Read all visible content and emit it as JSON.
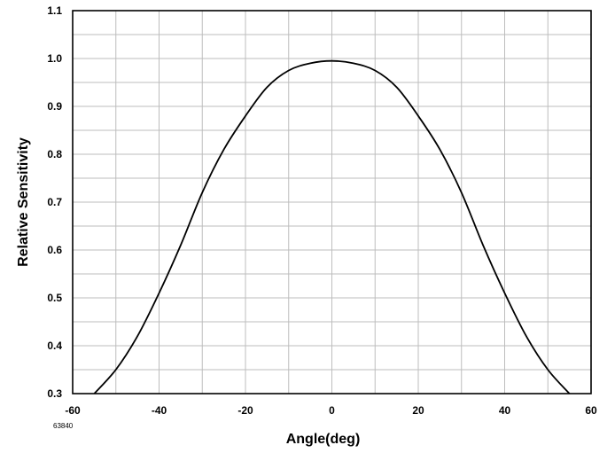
{
  "chart_data": {
    "type": "line",
    "title": "",
    "xlabel": "Angle(deg)",
    "ylabel": "Relative Sensitivity",
    "xlim": [
      -60,
      60
    ],
    "ylim": [
      0.3,
      1.1
    ],
    "x_ticks": [
      -60,
      -40,
      -20,
      0,
      20,
      40,
      60
    ],
    "x_tick_labels": [
      "-60",
      "-40",
      "-20",
      "0",
      "20",
      "40",
      "60"
    ],
    "y_ticks": [
      0.3,
      0.4,
      0.5,
      0.6,
      0.7,
      0.8,
      0.9,
      1.0,
      1.1
    ],
    "y_tick_labels": [
      "0.3",
      "0.4",
      "0.5",
      "0.6",
      "0.7",
      "0.8",
      "0.9",
      "1.0",
      "1.1"
    ],
    "x_minor_step": 10,
    "y_minor_step": 0.05,
    "grid": true,
    "legend": "none",
    "line_color": "#000000",
    "grid_color": "#bdbdbd",
    "series": [
      {
        "x": [
          -55,
          -50,
          -45,
          -40,
          -35,
          -30,
          -25,
          -20,
          -15,
          -10,
          -5,
          0,
          5,
          10,
          15,
          20,
          25,
          30,
          35,
          40,
          45,
          50,
          55
        ],
        "y": [
          0.3,
          0.35,
          0.42,
          0.51,
          0.61,
          0.72,
          0.81,
          0.88,
          0.94,
          0.975,
          0.99,
          0.995,
          0.99,
          0.975,
          0.94,
          0.88,
          0.81,
          0.72,
          0.61,
          0.51,
          0.42,
          0.35,
          0.3
        ]
      }
    ]
  },
  "figure_code": "63840"
}
